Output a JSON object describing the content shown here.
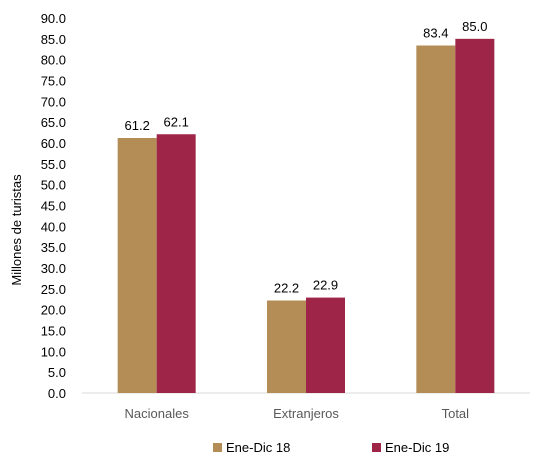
{
  "chart_data": {
    "type": "bar",
    "categories": [
      "Nacionales",
      "Extranjeros",
      "Total"
    ],
    "series": [
      {
        "name": "Ene-Dic 18",
        "values": [
          61.2,
          22.2,
          83.4
        ],
        "color": "#B48C55"
      },
      {
        "name": "Ene-Dic 19",
        "values": [
          62.1,
          22.9,
          85.0
        ],
        "color": "#9E2448"
      }
    ],
    "ylabel": "Millones de turistas",
    "ylim": [
      0,
      90
    ],
    "ytick_step": 5,
    "ytick_labels": [
      "0.0",
      "5.0",
      "10.0",
      "15.0",
      "20.0",
      "25.0",
      "30.0",
      "35.0",
      "40.0",
      "45.0",
      "50.0",
      "55.0",
      "60.0",
      "65.0",
      "70.0",
      "75.0",
      "80.0",
      "85.0",
      "90.0"
    ],
    "data_labels": true,
    "grid": false,
    "legend": "bottom-center"
  }
}
